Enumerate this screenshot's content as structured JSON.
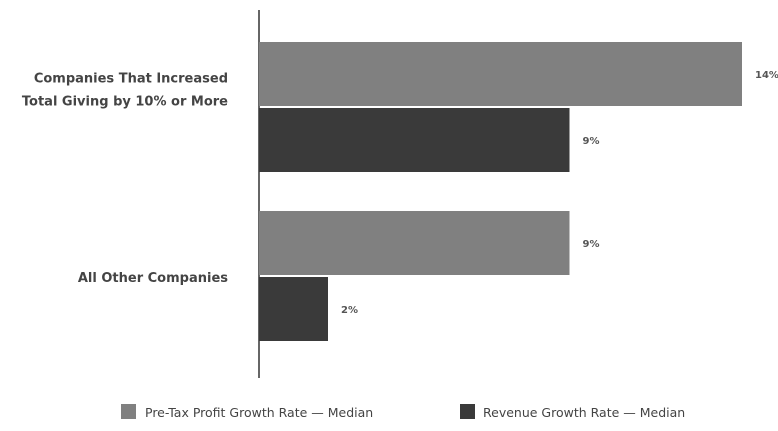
{
  "chart_data": {
    "type": "bar",
    "orientation": "horizontal",
    "categories": [
      [
        "Companies That Increased",
        "Total Giving by 10% or More"
      ],
      [
        "All Other Companies"
      ]
    ],
    "series": [
      {
        "name": "Pre-Tax Profit Growth Rate — Median",
        "color": "#808080",
        "values": [
          14,
          9
        ],
        "labels": [
          "14%",
          "9%"
        ]
      },
      {
        "name": "Revenue Growth Rate — Median",
        "color": "#3a3a3a",
        "values": [
          9,
          2
        ],
        "labels": [
          "9%",
          "2%"
        ]
      }
    ],
    "xlim": [
      0,
      14
    ],
    "grid": false,
    "legend": "bottom",
    "value_unit": "%"
  }
}
